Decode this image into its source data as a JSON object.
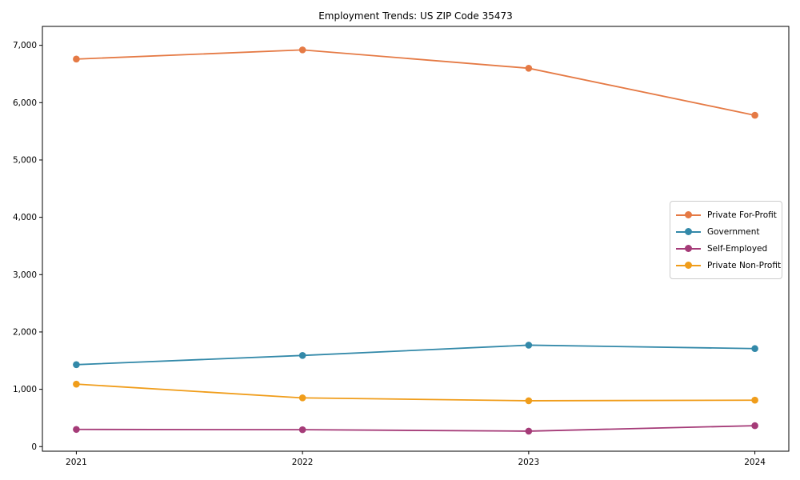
{
  "chart_data": {
    "type": "line",
    "title": "Employment Trends: US ZIP Code 35473",
    "x": [
      2021,
      2022,
      2023,
      2024
    ],
    "xtick_labels": [
      "2021",
      "2022",
      "2023",
      "2024"
    ],
    "series": [
      {
        "name": "Private For-Profit",
        "color": "#E57A45",
        "values": [
          6760,
          6920,
          6600,
          5780
        ]
      },
      {
        "name": "Government",
        "color": "#3389A9",
        "values": [
          1430,
          1590,
          1770,
          1710
        ]
      },
      {
        "name": "Self-Employed",
        "color": "#A53B78",
        "values": [
          300,
          295,
          270,
          365
        ]
      },
      {
        "name": "Private Non-Profit",
        "color": "#F09D1B",
        "values": [
          1090,
          850,
          800,
          810
        ]
      }
    ],
    "yticks": [
      0,
      1000,
      2000,
      3000,
      4000,
      5000,
      6000,
      7000
    ],
    "ytick_labels": [
      "0",
      "1,000",
      "2,000",
      "3,000",
      "4,000",
      "5,000",
      "6,000",
      "7,000"
    ],
    "ylim": [
      -80,
      7330
    ],
    "x_margin_frac": 0.05,
    "grid": false,
    "legend_position": "center-right",
    "marker": "o",
    "axis_color": "#000000"
  }
}
